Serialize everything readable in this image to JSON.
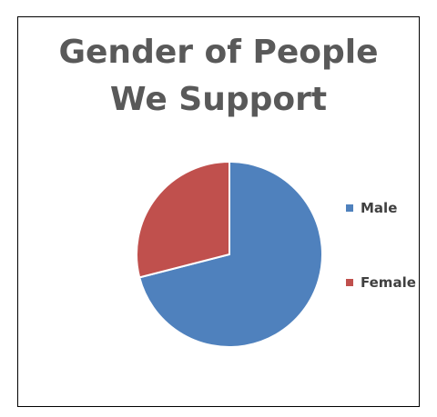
{
  "chart_data": {
    "type": "pie",
    "title_lines": [
      "Gender of People",
      "We Support"
    ],
    "categories": [
      "Male",
      "Female"
    ],
    "values": [
      71,
      29
    ],
    "colors": [
      "#4f81bd",
      "#c0504d"
    ],
    "legend_position": "right"
  }
}
